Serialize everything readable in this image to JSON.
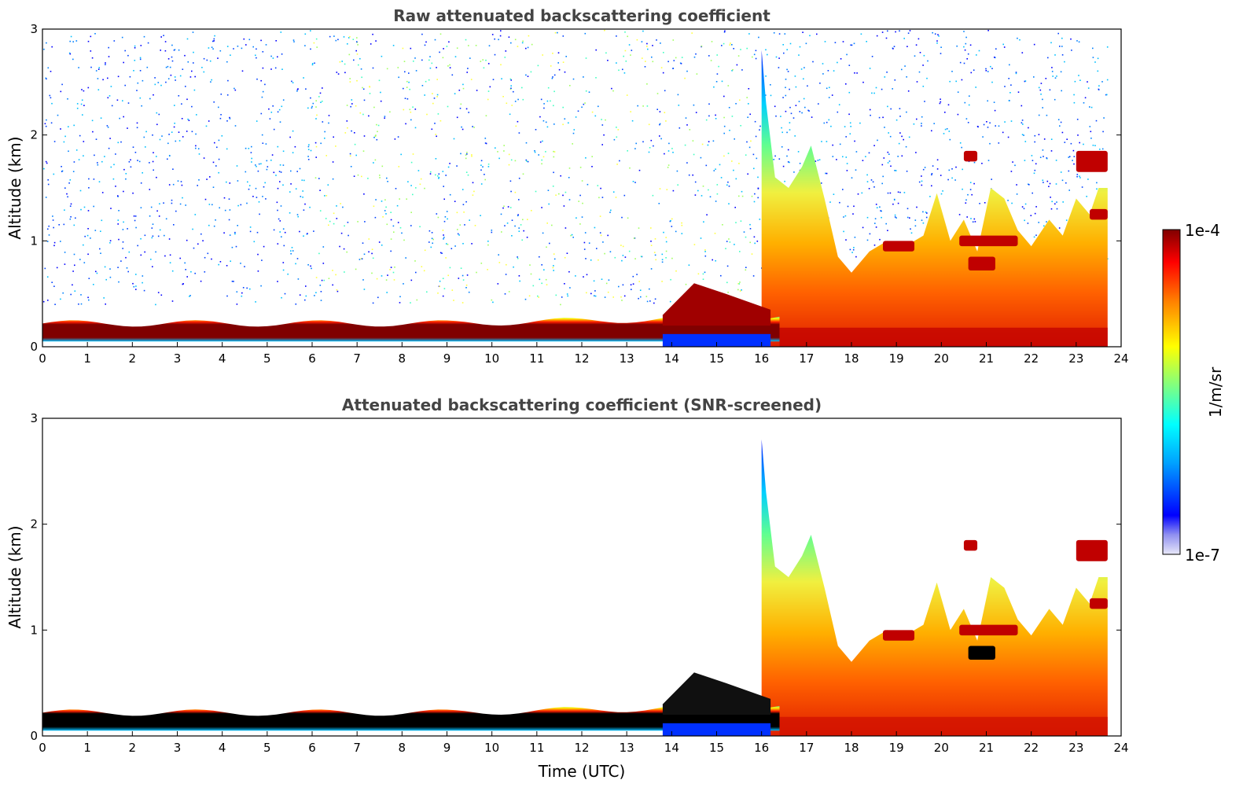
{
  "chart_data": [
    {
      "type": "heatmap",
      "title": "Raw attenuated backscattering coefficient",
      "xlabel": "",
      "ylabel": "Altitude (km)",
      "xlim": [
        0,
        24
      ],
      "ylim": [
        0,
        3
      ],
      "xticks": [
        "0",
        "1",
        "2",
        "3",
        "4",
        "5",
        "6",
        "7",
        "8",
        "9",
        "10",
        "11",
        "12",
        "13",
        "14",
        "15",
        "16",
        "17",
        "18",
        "19",
        "20",
        "21",
        "22",
        "23",
        "24"
      ],
      "yticks": [
        "0",
        "1",
        "2",
        "3"
      ],
      "features": [
        {
          "name": "boundary layer aerosol",
          "time_range_utc": [
            0,
            16.4
          ],
          "altitude_km": [
            0.05,
            0.3
          ],
          "level": "high"
        },
        {
          "name": "elevated aerosol plume",
          "time_range_utc": [
            13.8,
            16.2
          ],
          "altitude_km": [
            0.2,
            0.6
          ],
          "level": "high"
        },
        {
          "name": "afternoon mixed layer",
          "time_range_utc": [
            16.0,
            23.7
          ],
          "altitude_km": [
            0,
            2.8
          ],
          "level": "high"
        },
        {
          "name": "cloud layers",
          "time_range_utc": [
            18.7,
            23.7
          ],
          "altitude_km": [
            0.7,
            1.9
          ],
          "level": "saturated"
        },
        {
          "name": "background noise",
          "time_range_utc": [
            0,
            23.7
          ],
          "altitude_km": [
            0.4,
            3.0
          ],
          "level": "low"
        }
      ]
    },
    {
      "type": "heatmap",
      "title": "Attenuated backscattering coefficient (SNR-screened)",
      "xlabel": "Time (UTC)",
      "ylabel": "Altitude (km)",
      "xlim": [
        0,
        24
      ],
      "ylim": [
        0,
        3
      ],
      "xticks": [
        "0",
        "1",
        "2",
        "3",
        "4",
        "5",
        "6",
        "7",
        "8",
        "9",
        "10",
        "11",
        "12",
        "13",
        "14",
        "15",
        "16",
        "17",
        "18",
        "19",
        "20",
        "21",
        "22",
        "23",
        "24"
      ],
      "yticks": [
        "0",
        "1",
        "2",
        "3"
      ],
      "features": [
        {
          "name": "boundary layer aerosol",
          "time_range_utc": [
            0,
            16.4
          ],
          "altitude_km": [
            0.05,
            0.3
          ],
          "level": "high"
        },
        {
          "name": "elevated aerosol plume",
          "time_range_utc": [
            13.8,
            16.2
          ],
          "altitude_km": [
            0.2,
            0.6
          ],
          "level": "high"
        },
        {
          "name": "afternoon mixed layer",
          "time_range_utc": [
            16.0,
            23.7
          ],
          "altitude_km": [
            0,
            2.8
          ],
          "level": "high"
        },
        {
          "name": "cloud layers",
          "time_range_utc": [
            18.7,
            23.7
          ],
          "altitude_km": [
            0.7,
            1.9
          ],
          "level": "saturated"
        }
      ]
    }
  ],
  "colorbar": {
    "label": "1/m/sr",
    "max_label": "1e-4",
    "min_label": "1e-7",
    "range": [
      1e-07,
      0.0001
    ],
    "colors": [
      "#e8e8f8",
      "#0000ff",
      "#00c0ff",
      "#40ffc0",
      "#ffff00",
      "#ff8000",
      "#ff0000",
      "#800000"
    ]
  }
}
